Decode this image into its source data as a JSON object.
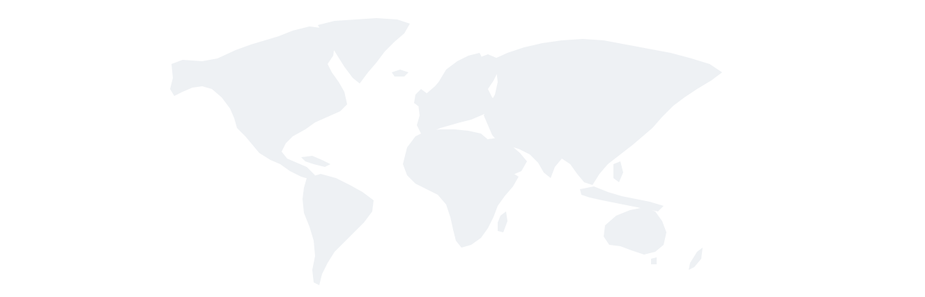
{
  "map": {
    "type": "world-map-background",
    "land_color": "#eef1f4",
    "background_color": "#ffffff",
    "regions": [
      "north-america",
      "greenland",
      "south-america",
      "europe",
      "africa",
      "asia",
      "australia",
      "new-zealand"
    ]
  }
}
